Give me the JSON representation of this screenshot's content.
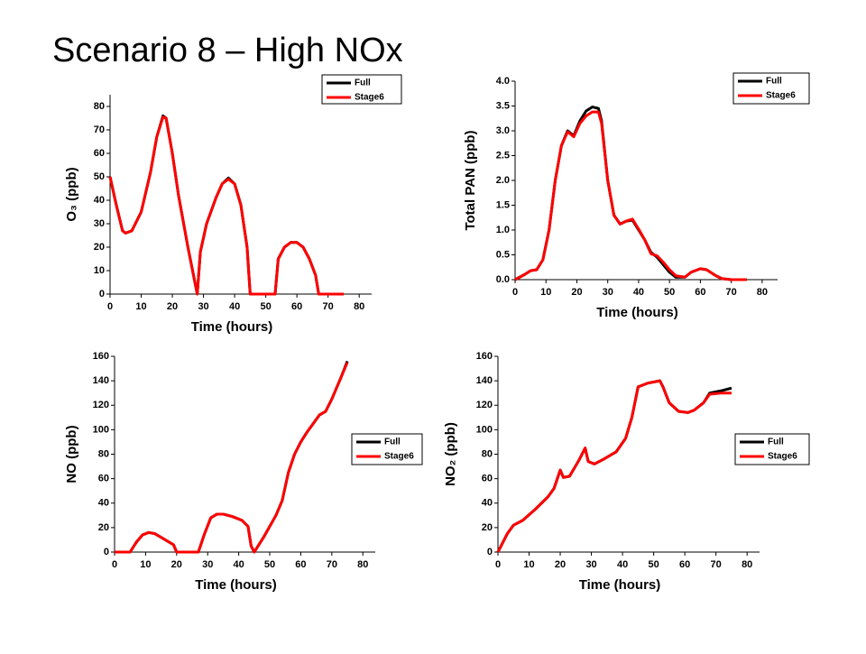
{
  "title": "Scenario 8 – High NOx",
  "chart_data": [
    {
      "type": "line",
      "xlabel": "Time (hours)",
      "ylabel": "O₃ (ppb)",
      "x": [
        0,
        2,
        4,
        5,
        7,
        10,
        13,
        15,
        17,
        18,
        20,
        22,
        25,
        28,
        29,
        31,
        34,
        36,
        38,
        40,
        42,
        44,
        45,
        53,
        54,
        56,
        58,
        60,
        62,
        64,
        66,
        67,
        75
      ],
      "series": [
        {
          "name": "Full",
          "color": "#000000",
          "values": [
            50,
            38,
            27,
            26,
            27,
            35,
            52,
            67,
            76,
            75,
            60,
            42,
            20,
            0,
            18,
            30,
            41,
            47,
            49.5,
            47,
            38,
            20,
            0,
            0,
            15,
            20,
            22,
            22,
            20,
            15,
            8,
            0,
            0
          ]
        },
        {
          "name": "Stage6",
          "color": "#ff0000",
          "values": [
            50,
            38,
            27,
            26,
            27,
            35,
            52,
            67,
            75.5,
            75,
            60,
            42,
            20,
            0,
            18,
            30,
            41,
            47,
            49,
            47,
            38,
            20,
            0,
            0,
            15,
            20,
            22,
            22,
            20,
            15,
            8,
            0,
            0
          ]
        }
      ],
      "xlim": [
        0,
        84
      ],
      "xticks": [
        0,
        10,
        20,
        30,
        40,
        50,
        60,
        70,
        80
      ],
      "ylim": [
        0,
        85
      ],
      "yticks": [
        0,
        10,
        20,
        30,
        40,
        50,
        60,
        70,
        80
      ],
      "legend": "top-right"
    },
    {
      "type": "line",
      "xlabel": "Time (hours)",
      "ylabel": "Total PAN (ppb)",
      "x": [
        0,
        3,
        5,
        7,
        9,
        11,
        13,
        15,
        17,
        19,
        21,
        23,
        25,
        27,
        28,
        30,
        32,
        34,
        36,
        38,
        40,
        42,
        44,
        46,
        48,
        50,
        52,
        55,
        57,
        60,
        62,
        65,
        67,
        70,
        75
      ],
      "series": [
        {
          "name": "Full",
          "color": "#000000",
          "values": [
            0,
            0.1,
            0.18,
            0.2,
            0.4,
            1.0,
            2.0,
            2.7,
            3.0,
            2.9,
            3.2,
            3.4,
            3.48,
            3.45,
            3.2,
            2.0,
            1.3,
            1.12,
            1.18,
            1.2,
            1.0,
            0.8,
            0.55,
            0.45,
            0.3,
            0.15,
            0.05,
            0.05,
            0.15,
            0.22,
            0.2,
            0.08,
            0.02,
            0,
            0
          ]
        },
        {
          "name": "Stage6",
          "color": "#ff0000",
          "values": [
            0,
            0.1,
            0.18,
            0.2,
            0.4,
            1.0,
            2.0,
            2.7,
            2.98,
            2.88,
            3.15,
            3.3,
            3.38,
            3.38,
            3.15,
            2.0,
            1.3,
            1.12,
            1.18,
            1.22,
            1.02,
            0.8,
            0.52,
            0.48,
            0.35,
            0.2,
            0.08,
            0.05,
            0.15,
            0.22,
            0.2,
            0.08,
            0.02,
            0,
            0
          ]
        }
      ],
      "xlim": [
        0,
        85
      ],
      "xticks": [
        0,
        10,
        20,
        30,
        40,
        50,
        60,
        70,
        80
      ],
      "ylim": [
        0,
        4
      ],
      "yticks": [
        {
          "value": 0,
          "label": "0.0"
        },
        0.5,
        {
          "value": 1,
          "label": "1.0"
        },
        1.5,
        {
          "value": 2,
          "label": "2.0"
        },
        2.5,
        {
          "value": 3,
          "label": "3.0"
        },
        3.5,
        {
          "value": 4,
          "label": "4.0"
        }
      ],
      "legend": "top-right"
    },
    {
      "type": "line",
      "xlabel": "Time (hours)",
      "ylabel": "NO (ppb)",
      "x": [
        0,
        5,
        7,
        9,
        11,
        13,
        15,
        17,
        19,
        20,
        27,
        29,
        31,
        33,
        35,
        38,
        41,
        43,
        44,
        45,
        48,
        52,
        54,
        56,
        58,
        60,
        62,
        64,
        66,
        68,
        70,
        73,
        75
      ],
      "series": [
        {
          "name": "Full",
          "color": "#000000",
          "values": [
            0,
            0,
            8,
            14,
            16,
            15,
            12,
            9,
            6,
            0,
            0,
            15,
            28,
            31,
            31,
            29,
            26,
            21,
            5,
            0,
            12,
            30,
            42,
            65,
            80,
            90,
            98,
            105,
            112,
            115,
            125,
            143,
            156
          ]
        },
        {
          "name": "Stage6",
          "color": "#ff0000",
          "values": [
            0,
            0,
            8,
            14,
            16,
            15,
            12,
            9,
            6,
            0,
            0,
            15,
            28,
            31,
            31,
            29,
            26,
            21,
            5,
            0,
            12,
            30,
            42,
            65,
            80,
            90,
            98,
            105,
            112,
            115,
            125,
            143,
            155
          ]
        }
      ],
      "xlim": [
        0,
        84
      ],
      "xticks": [
        0,
        10,
        20,
        30,
        40,
        50,
        60,
        70,
        80
      ],
      "ylim": [
        0,
        160
      ],
      "yticks": [
        0,
        20,
        40,
        60,
        80,
        100,
        120,
        140,
        160
      ],
      "legend": "right"
    },
    {
      "type": "line",
      "xlabel": "Time (hours)",
      "ylabel": "NO₂ (ppb)",
      "x": [
        0,
        3,
        5,
        8,
        12,
        16,
        18,
        20,
        21,
        23,
        26,
        28,
        29,
        31,
        34,
        38,
        41,
        43,
        45,
        48,
        52,
        53,
        55,
        58,
        61,
        63,
        66,
        68,
        72,
        75
      ],
      "series": [
        {
          "name": "Full",
          "color": "#000000",
          "values": [
            0,
            15,
            22,
            26,
            35,
            45,
            52,
            67,
            61,
            62,
            75,
            85,
            74,
            72,
            76,
            82,
            93,
            110,
            135,
            138,
            140,
            135,
            122,
            115,
            114,
            116,
            122,
            130,
            132,
            134
          ]
        },
        {
          "name": "Stage6",
          "color": "#ff0000",
          "values": [
            0,
            15,
            22,
            26,
            35,
            45,
            52,
            67,
            61,
            62,
            75,
            85,
            74,
            72,
            76,
            82,
            93,
            110,
            135,
            138,
            140,
            135,
            122,
            115,
            114,
            116,
            122,
            129,
            130,
            130
          ]
        }
      ],
      "xlim": [
        0,
        84
      ],
      "xticks": [
        0,
        10,
        20,
        30,
        40,
        50,
        60,
        70,
        80
      ],
      "ylim": [
        0,
        160
      ],
      "yticks": [
        0,
        20,
        40,
        60,
        80,
        100,
        120,
        140,
        160
      ],
      "legend": "right"
    }
  ]
}
